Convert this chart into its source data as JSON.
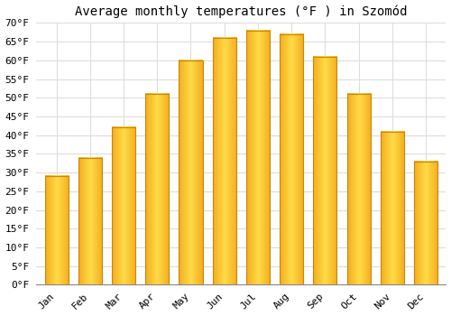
{
  "title": "Average monthly temperatures (°F ) in Szomód",
  "months": [
    "Jan",
    "Feb",
    "Mar",
    "Apr",
    "May",
    "Jun",
    "Jul",
    "Aug",
    "Sep",
    "Oct",
    "Nov",
    "Dec"
  ],
  "values": [
    29,
    34,
    42,
    51,
    60,
    66,
    68,
    67,
    61,
    51,
    41,
    33
  ],
  "bar_color_center": "#FFD04A",
  "bar_color_edge": "#F5A800",
  "bar_border_color": "#C8860A",
  "ylim": [
    0,
    70
  ],
  "yticks": [
    0,
    5,
    10,
    15,
    20,
    25,
    30,
    35,
    40,
    45,
    50,
    55,
    60,
    65,
    70
  ],
  "ytick_labels": [
    "0°F",
    "5°F",
    "10°F",
    "15°F",
    "20°F",
    "25°F",
    "30°F",
    "35°F",
    "40°F",
    "45°F",
    "50°F",
    "55°F",
    "60°F",
    "65°F",
    "70°F"
  ],
  "background_color": "#FFFFFF",
  "grid_color": "#DDDDDD",
  "title_fontsize": 10,
  "tick_fontsize": 8,
  "bar_width": 0.7
}
